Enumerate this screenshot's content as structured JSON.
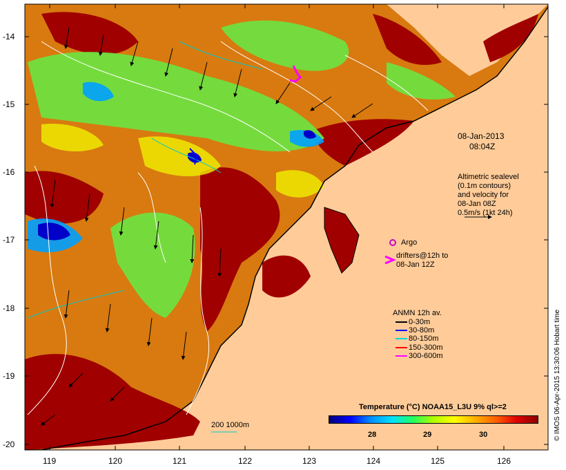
{
  "map": {
    "y_labels": [
      "-14",
      "-15",
      "-16",
      "-17",
      "-18",
      "-19",
      "-20"
    ],
    "x_labels": [
      "119",
      "120",
      "121",
      "122",
      "123",
      "124",
      "125",
      "126"
    ],
    "date_line1": "08-Jan-2013",
    "date_line2": "08:04Z",
    "altimetry_lines": [
      "Altimetric sealevel",
      "(0.1m contours)",
      "and velocity for",
      "08-Jan 08Z",
      "0.5m/s (1kt 24h)"
    ],
    "argo_label": "Argo",
    "drifters_line1": "drifters@12h to",
    "drifters_line2": "08-Jan 12Z",
    "anmn": {
      "title": "ANMN 12h av.",
      "items": [
        {
          "label": "0-30m",
          "color": "#000000"
        },
        {
          "label": "30-80m",
          "color": "#0000ff"
        },
        {
          "label": "80-150m",
          "color": "#00d8d8"
        },
        {
          "label": "150-300m",
          "color": "#ff0000"
        },
        {
          "label": "300-600m",
          "color": "#ff00ff"
        }
      ]
    },
    "isobath_label": "200  1000m",
    "colorbar": {
      "title": "Temperature (°C) NOAA15_L3U 9% ql>=2",
      "ticks": [
        "28",
        "29",
        "30"
      ]
    },
    "credit": "© IMOS 06-Apr-2015 13:30:06 Hobart time",
    "colors": {
      "land": "#ffcc99",
      "coast": "#000000",
      "sst_hot": "#a00000",
      "sst_cool": "#0000ff"
    }
  }
}
